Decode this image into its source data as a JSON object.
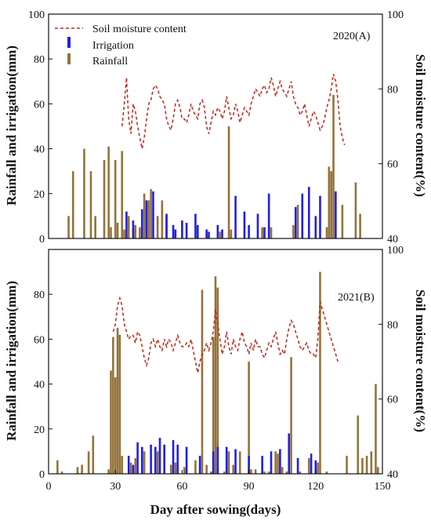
{
  "chart_data": [
    {
      "type": "bar",
      "panel_label": "2020(A)",
      "xlabel": "Day after sowing(days)",
      "ylabel_left": "Rainfall and irrigation(mm)",
      "ylabel_right": "Soil moisture content(%)",
      "xlim": [
        0,
        150
      ],
      "ylim_left": [
        0,
        100
      ],
      "ylim_right": [
        40,
        100
      ],
      "yticks_left": [
        "0",
        "20",
        "40",
        "60",
        "80",
        "100"
      ],
      "yticks_right": [
        "40",
        "60",
        "80",
        "100"
      ],
      "xtick_labels_visible": false,
      "legend": {
        "position": "top-left",
        "entries": [
          {
            "label": "Soil moisture content",
            "color": "#c0281b",
            "kind": "dashed-line"
          },
          {
            "label": "Irrigation",
            "color": "#1f1fe6",
            "kind": "bar"
          },
          {
            "label": "Rainfall",
            "color": "#94723a",
            "kind": "bar"
          }
        ]
      },
      "series": [
        {
          "name": "Irrigation",
          "color": "#1f1fe6",
          "x": [
            35,
            38,
            42,
            44,
            47,
            53,
            56,
            57,
            60,
            62,
            66,
            67,
            71,
            72,
            76,
            78,
            84,
            88,
            90,
            94,
            97,
            99,
            111,
            114,
            117,
            120,
            122,
            129
          ],
          "values": [
            12,
            8,
            13,
            17,
            21,
            11,
            6,
            4,
            8,
            7,
            11,
            6,
            4,
            3,
            6,
            4,
            19,
            12,
            6,
            11,
            5,
            20,
            14,
            20,
            23,
            10,
            19,
            21
          ]
        },
        {
          "name": "Rainfall",
          "color": "#94723a",
          "x": [
            9,
            11,
            16,
            19,
            21,
            25,
            27,
            28,
            30,
            31,
            33,
            34,
            36,
            38,
            39,
            41,
            43,
            45,
            46,
            49,
            51,
            53,
            77,
            81,
            82,
            96,
            100,
            110,
            112,
            125,
            126,
            127,
            128,
            132,
            138,
            140
          ],
          "values": [
            10,
            30,
            40,
            30,
            10,
            35,
            41,
            5,
            35,
            7,
            39,
            4,
            10,
            4,
            6,
            5,
            20,
            17,
            22,
            10,
            17,
            10,
            3,
            50,
            4,
            5,
            5,
            6,
            15,
            5,
            32,
            30,
            64,
            15,
            25,
            11
          ]
        },
        {
          "name": "Soil moisture content",
          "color": "#c0281b",
          "axis": "right",
          "style": "dashed",
          "x": [
            33,
            34,
            35,
            36,
            37,
            38,
            39,
            40,
            41,
            42,
            43,
            44,
            45,
            46,
            47,
            48,
            49,
            50,
            51,
            52,
            53,
            54,
            55,
            56,
            57,
            58,
            59,
            60,
            61,
            62,
            63,
            64,
            65,
            66,
            67,
            68,
            69,
            70,
            71,
            72,
            73,
            74,
            75,
            76,
            77,
            78,
            79,
            80,
            81,
            82,
            83,
            84,
            85,
            86,
            87,
            88,
            89,
            90,
            91,
            92,
            93,
            94,
            95,
            96,
            97,
            98,
            99,
            100,
            101,
            102,
            103,
            104,
            105,
            106,
            107,
            108,
            109,
            110,
            111,
            112,
            113,
            114,
            115,
            116,
            117,
            118,
            119,
            120,
            121,
            122,
            123,
            124,
            125,
            126,
            127,
            128,
            129,
            130,
            131,
            132,
            133
          ],
          "values": [
            70,
            76,
            83,
            72,
            68,
            76,
            74,
            70,
            67,
            64,
            67,
            72,
            76,
            77,
            80,
            81,
            80,
            78,
            77,
            76,
            72,
            70,
            69,
            72,
            76,
            77,
            75,
            72,
            72,
            71,
            73,
            76,
            74,
            73,
            72,
            76,
            77,
            75,
            70,
            68,
            71,
            74,
            73,
            75,
            74,
            72,
            74,
            78,
            75,
            72,
            73,
            76,
            74,
            71,
            73,
            75,
            74,
            73,
            76,
            78,
            80,
            79,
            78,
            80,
            81,
            79,
            80,
            83,
            81,
            78,
            80,
            82,
            80,
            79,
            78,
            80,
            82,
            78,
            76,
            75,
            73,
            74,
            76,
            73,
            70,
            72,
            74,
            73,
            71,
            69,
            70,
            72,
            75,
            77,
            80,
            84,
            82,
            77,
            70,
            67,
            65
          ]
        }
      ]
    },
    {
      "type": "bar",
      "panel_label": "2021(B)",
      "xlabel": "Day after sowing(days)",
      "ylabel_left": "Rainfall and irrigation(mm)",
      "ylabel_right": "Soil moisture content(%)",
      "xlim": [
        0,
        150
      ],
      "ylim_left": [
        0,
        100
      ],
      "ylim_right": [
        40,
        100
      ],
      "xticks": [
        "0",
        "30",
        "60",
        "90",
        "120",
        "150"
      ],
      "yticks_left": [
        "0",
        "20",
        "40",
        "60",
        "80"
      ],
      "yticks_right": [
        "40",
        "60",
        "80",
        "100"
      ],
      "series": [
        {
          "name": "Irrigation",
          "color": "#1f1fe6",
          "x": [
            36,
            38,
            40,
            42,
            46,
            48,
            50,
            52,
            56,
            58,
            62,
            68,
            74,
            76,
            80,
            84,
            90,
            96,
            100,
            104,
            108,
            112,
            118,
            120
          ],
          "values": [
            8,
            4,
            14,
            12,
            13,
            12,
            16,
            13,
            15,
            13,
            12,
            8,
            10,
            12,
            12,
            11,
            8,
            8,
            10,
            11,
            18,
            7,
            9,
            6
          ]
        },
        {
          "name": "Rainfall",
          "color": "#94723a",
          "x": [
            4,
            6,
            13,
            15,
            18,
            20,
            27,
            28,
            29,
            30,
            31,
            32,
            33,
            37,
            39,
            43,
            49,
            55,
            57,
            61,
            66,
            69,
            71,
            73,
            74,
            75,
            76,
            79,
            81,
            83,
            86,
            90,
            91,
            93,
            97,
            99,
            102,
            103,
            105,
            107,
            109,
            113,
            117,
            121,
            122,
            125,
            134,
            139,
            141,
            143,
            145,
            147,
            148
          ],
          "values": [
            6,
            1,
            3,
            4,
            10,
            17,
            2,
            46,
            61,
            43,
            65,
            62,
            8,
            5,
            7,
            10,
            10,
            4,
            5,
            3,
            6,
            82,
            4,
            1,
            61,
            88,
            83,
            1,
            10,
            4,
            10,
            50,
            2,
            2,
            1,
            1,
            10,
            9,
            3,
            1,
            52,
            1,
            7,
            5,
            90,
            1,
            8,
            26,
            7,
            8,
            10,
            40,
            3
          ]
        },
        {
          "name": "Soil moisture content",
          "color": "#c0281b",
          "axis": "right",
          "style": "dashed",
          "x": [
            29,
            30,
            31,
            32,
            33,
            34,
            35,
            36,
            37,
            38,
            39,
            40,
            41,
            42,
            43,
            44,
            45,
            46,
            47,
            48,
            49,
            50,
            51,
            52,
            53,
            54,
            55,
            56,
            57,
            58,
            59,
            60,
            61,
            62,
            63,
            64,
            65,
            66,
            67,
            68,
            69,
            70,
            71,
            72,
            73,
            74,
            75,
            76,
            77,
            78,
            79,
            80,
            81,
            82,
            83,
            84,
            85,
            86,
            87,
            88,
            89,
            90,
            91,
            92,
            93,
            94,
            95,
            96,
            97,
            98,
            99,
            100,
            101,
            102,
            103,
            104,
            105,
            106,
            107,
            108,
            109,
            110,
            111,
            112,
            113,
            114,
            115,
            116,
            117,
            118,
            119,
            120,
            121,
            122,
            123,
            124,
            125,
            126,
            127,
            128,
            129,
            130
          ],
          "values": [
            78,
            80,
            85,
            87,
            85,
            80,
            78,
            76,
            77,
            77,
            75,
            78,
            77,
            74,
            71,
            69,
            71,
            75,
            76,
            74,
            76,
            74,
            73,
            76,
            74,
            76,
            75,
            73,
            75,
            77,
            75,
            74,
            74,
            75,
            74,
            76,
            73,
            70,
            67,
            70,
            72,
            73,
            75,
            73,
            75,
            78,
            84,
            80,
            76,
            72,
            74,
            78,
            74,
            72,
            76,
            74,
            73,
            76,
            78,
            75,
            74,
            72,
            75,
            73,
            76,
            74,
            74,
            72,
            71,
            73,
            75,
            74,
            76,
            78,
            75,
            72,
            73,
            72,
            76,
            79,
            81,
            80,
            78,
            76,
            74,
            73,
            74,
            75,
            73,
            72,
            72,
            71,
            76,
            86,
            84,
            82,
            80,
            78,
            76,
            74,
            72,
            70
          ]
        }
      ]
    }
  ]
}
